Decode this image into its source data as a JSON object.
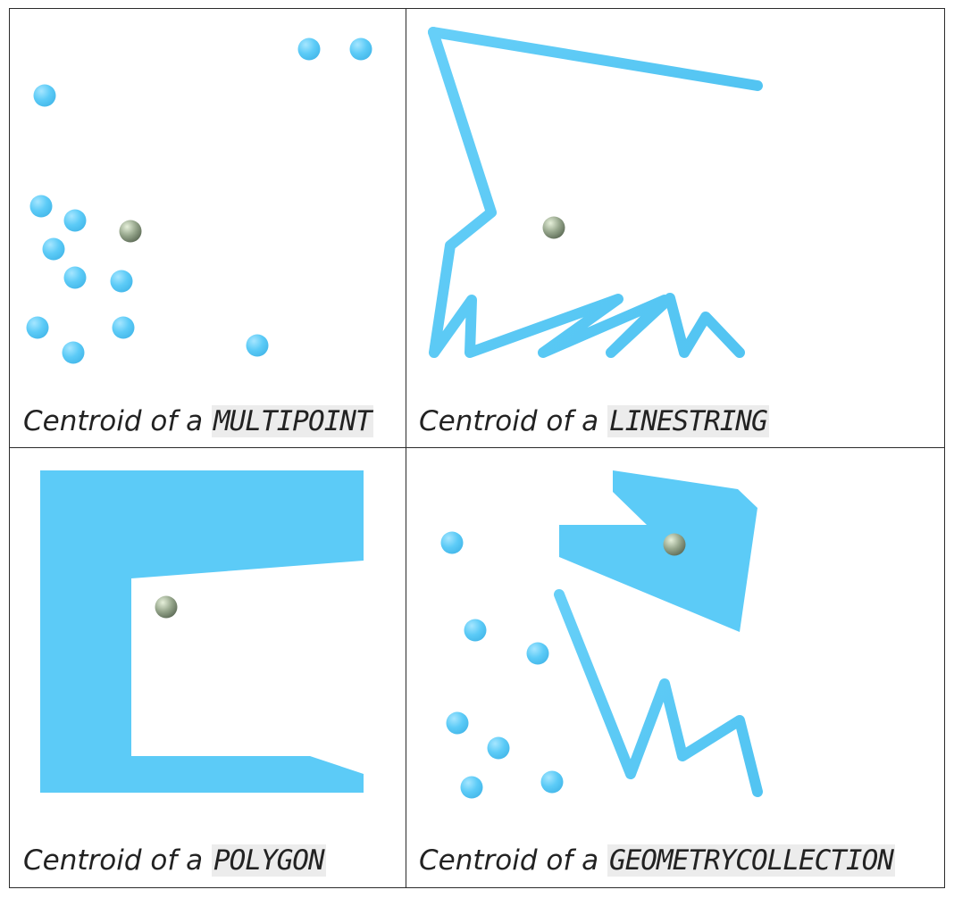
{
  "colors": {
    "geometry": "#5ccbf7",
    "geometry_highlight": "#9fe3ff",
    "centroid": "#8f9f86",
    "centroid_highlight": "#e6f0da",
    "border": "#2b2b2b",
    "code_background": "#ececec"
  },
  "panels": [
    {
      "caption_prefix": "Centroid of a ",
      "caption_code": "MULTIPOINT"
    },
    {
      "caption_prefix": "Centroid of a ",
      "caption_code": "LINESTRING"
    },
    {
      "caption_prefix": "Centroid of a ",
      "caption_code": "POLYGON"
    },
    {
      "caption_prefix": "Centroid of a ",
      "caption_code": "GEOMETRYCOLLECTION"
    }
  ]
}
